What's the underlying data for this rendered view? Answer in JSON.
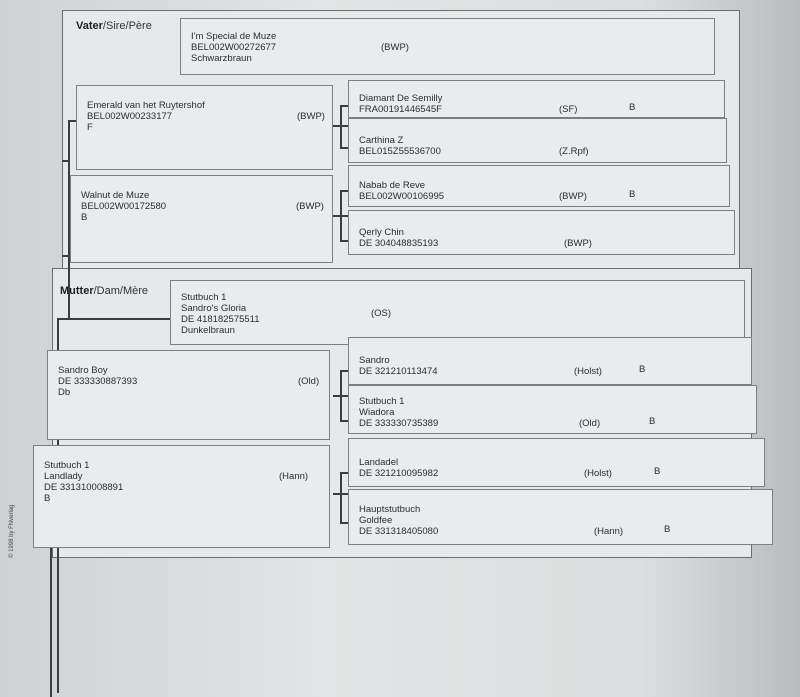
{
  "sire": {
    "title_bold": "Vater",
    "title_rest": "/Sire/Père",
    "parent": {
      "lines": [
        "I'm Special de Muze",
        "BEL002W00272677",
        "Schwarzbraun"
      ],
      "reg": "(BWP)"
    },
    "gp1": {
      "lines": [
        "Emerald van het Ruytershof",
        "BEL002W00233177",
        "F"
      ],
      "reg": "(BWP)"
    },
    "gp2": {
      "lines": [
        "Walnut de Muze",
        "BEL002W00172580",
        "B"
      ],
      "reg": "(BWP)"
    },
    "ggp1": {
      "lines": [
        "Diamant De Semilly",
        "FRA00191446545F"
      ],
      "reg": "(SF)",
      "mark": "B"
    },
    "ggp2": {
      "lines": [
        "Carthina Z",
        "BEL015Z55536700"
      ],
      "reg": "(Z.Rpf)",
      "mark": ""
    },
    "ggp3": {
      "lines": [
        "Nabab de Reve",
        "BEL002W00106995"
      ],
      "reg": "(BWP)",
      "mark": "B"
    },
    "ggp4": {
      "lines": [
        "Qerly Chin",
        "DE 304048835193"
      ],
      "reg": "(BWP)",
      "mark": ""
    }
  },
  "dam": {
    "title_bold": "Mutter",
    "title_rest": "/Dam/Mère",
    "parent": {
      "lines": [
        "Stutbuch 1",
        "Sandro's Gloria",
        "DE 418182575511",
        "Dunkelbraun"
      ],
      "reg": "(OS)"
    },
    "gp1": {
      "lines": [
        "Sandro Boy",
        "DE 333330887393",
        "Db"
      ],
      "reg": "(Old)"
    },
    "gp2": {
      "lines": [
        "Stutbuch 1",
        "Landlady",
        "DE 331310008891",
        "B"
      ],
      "reg": "(Hann)"
    },
    "ggp1": {
      "lines": [
        "Sandro",
        "DE 321210113474"
      ],
      "reg": "(Holst)",
      "mark": "B"
    },
    "ggp2": {
      "lines": [
        "Stutbuch 1",
        "Wiadora",
        "DE 333330735389"
      ],
      "reg": "(Old)",
      "mark": "B"
    },
    "ggp3": {
      "lines": [
        "Landadel",
        "DE 321210095982"
      ],
      "reg": "(Holst)",
      "mark": "B"
    },
    "ggp4": {
      "lines": [
        "Hauptstutbuch",
        "Goldfee",
        "DE 331318405080"
      ],
      "reg": "(Hann)",
      "mark": "B"
    }
  },
  "copyright": "© 1998 by FNverlag"
}
